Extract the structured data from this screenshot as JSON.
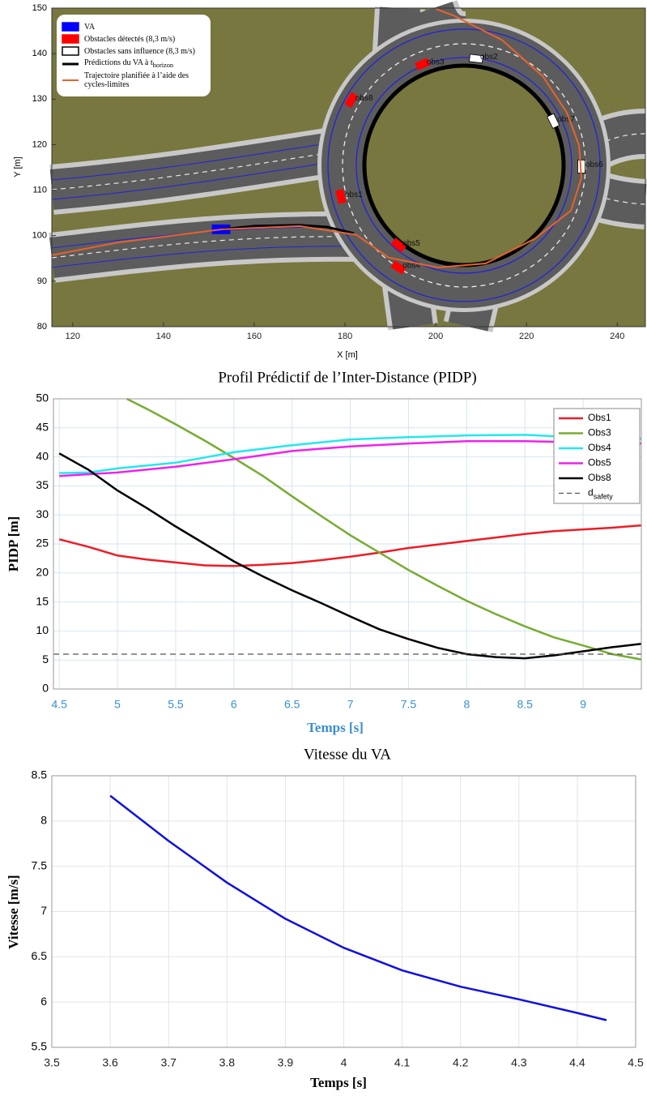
{
  "chart_data": [
    {
      "type": "map",
      "xlabel": "X [m]",
      "ylabel": "Y [m]",
      "xlim": [
        115.4,
        246.2
      ],
      "ylim": [
        80,
        150
      ],
      "xticks": [
        120,
        140,
        160,
        180,
        200,
        220,
        240
      ],
      "yticks": [
        80,
        90,
        100,
        110,
        120,
        130,
        140,
        150
      ],
      "grid": false,
      "series": [
        {
          "name": "VA",
          "marker": "rect",
          "color": "#0000ff",
          "edgecolor": "#0000ff",
          "x": [
            152.7
          ],
          "y": [
            101.4
          ]
        },
        {
          "name": "Obstacles détectés (8,3 m/s)",
          "marker": "rect",
          "color": "#ff0000",
          "edgecolor": "#ff0000",
          "x": [
            179.1,
            197.1,
            191.8,
            191.8,
            181.4
          ],
          "y": [
            108.6,
            137.7,
            93.0,
            97.9,
            129.8
          ],
          "labels": [
            "obs1",
            "obs3",
            "obs4",
            "obs5",
            "obs8"
          ]
        },
        {
          "name": "Obstacles sans influence (8,3 m/s)",
          "marker": "rect",
          "color": "#ffffff",
          "edgecolor": "#000000",
          "x": [
            208.9,
            225.9,
            232.1
          ],
          "y": [
            138.9,
            125.2,
            115.2
          ],
          "labels": [
            "obs2",
            "obs7",
            "obs6"
          ]
        },
        {
          "name": "Prédictions du VA à t_horizon",
          "marker": "line",
          "color": "#000000",
          "width": 3,
          "x": [
            153,
            160,
            170,
            176,
            182
          ],
          "y": [
            101.4,
            102.1,
            102.3,
            101.9,
            100.5
          ]
        },
        {
          "name": "Trajectoire planifiée à l’aide des cycles-limites",
          "marker": "line",
          "color": "#e8632b",
          "width": 2,
          "x": [
            115.4,
            130,
            153,
            170,
            182.5,
            189.6,
            200.4,
            211,
            221.8,
            229.8,
            232.1,
            231.6,
            228.9,
            223.6,
            214.6,
            203.9,
            200
          ],
          "y": [
            95.7,
            98.5,
            101.4,
            102.1,
            100.2,
            95.2,
            93.0,
            93.9,
            99.3,
            105.5,
            112.7,
            119.8,
            127,
            135,
            143,
            148.4,
            149.8
          ]
        }
      ]
    },
    {
      "type": "line",
      "title": "Profil Prédictif de l’Inter-Distance (PIDP)",
      "xlabel": "Temps [s]",
      "ylabel": "PIDP [m]",
      "xlim": [
        4.45,
        9.5
      ],
      "ylim": [
        0,
        50
      ],
      "xticks": [
        4.5,
        5,
        5.5,
        6,
        6.5,
        7,
        7.5,
        8,
        8.5,
        9
      ],
      "yticks": [
        0,
        5,
        10,
        15,
        20,
        25,
        30,
        35,
        40,
        45,
        50
      ],
      "grid": true,
      "series": [
        {
          "name": "Obs1",
          "color": "#ee1c25",
          "x": [
            4.5,
            4.75,
            5,
            5.25,
            5.5,
            5.75,
            6,
            6.25,
            6.5,
            6.75,
            7,
            7.25,
            7.5,
            7.75,
            8,
            8.25,
            8.5,
            8.75,
            9,
            9.25,
            9.5
          ],
          "values": [
            25.8,
            24.5,
            23,
            22.3,
            21.8,
            21.3,
            21.2,
            21.4,
            21.7,
            22.2,
            22.8,
            23.5,
            24.3,
            24.9,
            25.5,
            26.1,
            26.7,
            27.2,
            27.5,
            27.8,
            28.2
          ]
        },
        {
          "name": "Obs3",
          "color": "#77ac30",
          "x": [
            5.08,
            5.25,
            5.5,
            5.75,
            6,
            6.25,
            6.5,
            6.75,
            7,
            7.25,
            7.5,
            7.75,
            8,
            8.25,
            8.5,
            8.75,
            9,
            9.25,
            9.5
          ],
          "values": [
            50,
            48.3,
            45.6,
            42.8,
            39.8,
            36.7,
            33.2,
            29.8,
            26.5,
            23.5,
            20.5,
            17.8,
            15.2,
            12.9,
            10.8,
            8.9,
            7.5,
            6,
            5.1
          ]
        },
        {
          "name": "Obs4",
          "color": "#22e8ee",
          "x": [
            4.5,
            4.75,
            5,
            5.5,
            6,
            6.5,
            7,
            7.5,
            8,
            8.5,
            9,
            9.5
          ],
          "values": [
            37.2,
            37.3,
            38,
            39,
            40.8,
            42,
            43,
            43.4,
            43.7,
            43.8,
            43.3,
            43.1
          ]
        },
        {
          "name": "Obs5",
          "color": "#ee22ee",
          "x": [
            4.5,
            5,
            5.5,
            6,
            6.5,
            7,
            7.5,
            8,
            8.5,
            9,
            9.5
          ],
          "values": [
            36.7,
            37.3,
            38.3,
            39.6,
            41,
            41.8,
            42.3,
            42.7,
            42.7,
            42.5,
            42.3
          ]
        },
        {
          "name": "Obs8",
          "color": "#000000",
          "x": [
            4.5,
            4.75,
            5,
            5.25,
            5.5,
            5.75,
            6,
            6.25,
            6.5,
            6.75,
            7,
            7.25,
            7.5,
            7.75,
            8,
            8.25,
            8.5,
            8.75,
            9,
            9.25,
            9.5
          ],
          "values": [
            40.6,
            37.8,
            34.2,
            31.2,
            28,
            25,
            22,
            19.4,
            17,
            14.8,
            12.5,
            10.3,
            8.6,
            7.1,
            6,
            5.5,
            5.3,
            5.8,
            6.5,
            7.2,
            7.8
          ]
        },
        {
          "name": "d_safety",
          "color": "#555555",
          "dash": true,
          "x": [
            4.45,
            9.5
          ],
          "values": [
            6,
            6
          ]
        }
      ]
    },
    {
      "type": "line",
      "title": "Vitesse du VA",
      "xlabel": "Temps [s]",
      "ylabel": "Vitesse [m/s]",
      "xlim": [
        3.5,
        4.5
      ],
      "ylim": [
        5.5,
        8.5
      ],
      "xticks": [
        3.5,
        3.6,
        3.7,
        3.8,
        3.9,
        4,
        4.1,
        4.2,
        4.3,
        4.4,
        4.5
      ],
      "yticks": [
        5.5,
        6,
        6.5,
        7,
        7.5,
        8,
        8.5
      ],
      "grid": true,
      "series": [
        {
          "color": "#1010e0",
          "x": [
            3.6,
            3.7,
            3.8,
            3.9,
            4.0,
            4.1,
            4.2,
            4.3,
            4.4,
            4.45
          ],
          "values": [
            8.28,
            7.78,
            7.32,
            6.92,
            6.6,
            6.35,
            6.17,
            6.03,
            5.88,
            5.8
          ]
        }
      ]
    }
  ]
}
